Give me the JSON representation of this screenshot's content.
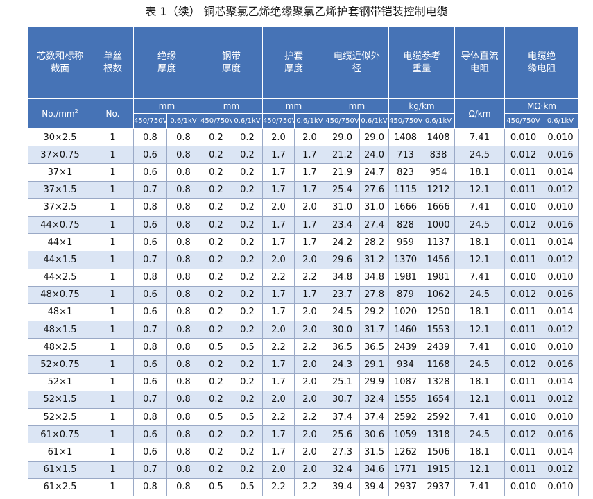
{
  "title": "表 1（续） 铜芯聚氯乙烯绝缘聚氯乙烯护套钢带铠装控制电缆",
  "header": {
    "core": "芯数和标称截面",
    "wires": "单丝根数",
    "insulation": "绝缘厚度",
    "steel_tape": "钢带厚度",
    "sheath": "护套厚度",
    "od": "电缆近似外径",
    "weight": "电缆参考重量",
    "dc_resistance": "导体直流电阻",
    "ins_resistance": "电缆绝缘电阻"
  },
  "units": {
    "core": "No./mm",
    "core_sup": "2",
    "wires": "No.",
    "mm1": "mm",
    "mm2": "mm",
    "mm3": "mm",
    "mm4": "mm",
    "kgkm": "kg/km",
    "ohmkm": "Ω/km",
    "mohmkm": "MΩ·km"
  },
  "voltage": {
    "low": "450/750V",
    "high": "0.6/1kV"
  },
  "rows": [
    [
      "30×2.5",
      "1",
      "0.8",
      "0.8",
      "0.2",
      "0.2",
      "2.0",
      "2.0",
      "29.0",
      "29.0",
      "1408",
      "1408",
      "7.41",
      "0.010",
      "0.010"
    ],
    [
      "37×0.75",
      "1",
      "0.6",
      "0.8",
      "0.2",
      "0.2",
      "1.7",
      "1.7",
      "21.2",
      "24.0",
      "713",
      "838",
      "24.5",
      "0.012",
      "0.016"
    ],
    [
      "37×1",
      "1",
      "0.6",
      "0.8",
      "0.2",
      "0.2",
      "1.7",
      "1.7",
      "21.9",
      "24.7",
      "823",
      "954",
      "18.1",
      "0.011",
      "0.014"
    ],
    [
      "37×1.5",
      "1",
      "0.7",
      "0.8",
      "0.2",
      "0.2",
      "1.7",
      "1.7",
      "25.4",
      "27.6",
      "1115",
      "1212",
      "12.1",
      "0.011",
      "0.012"
    ],
    [
      "37×2.5",
      "1",
      "0.8",
      "0.8",
      "0.2",
      "0.2",
      "2.0",
      "2.0",
      "31.0",
      "31.0",
      "1666",
      "1666",
      "7.41",
      "0.010",
      "0.010"
    ],
    [
      "44×0.75",
      "1",
      "0.6",
      "0.8",
      "0.2",
      "0.2",
      "1.7",
      "1.7",
      "23.4",
      "27.4",
      "828",
      "1000",
      "24.5",
      "0.012",
      "0.016"
    ],
    [
      "44×1",
      "1",
      "0.6",
      "0.8",
      "0.2",
      "0.2",
      "1.7",
      "1.7",
      "24.2",
      "28.2",
      "959",
      "1137",
      "18.1",
      "0.011",
      "0.014"
    ],
    [
      "44×1.5",
      "1",
      "0.7",
      "0.8",
      "0.2",
      "0.2",
      "2.0",
      "2.0",
      "29.6",
      "31.2",
      "1370",
      "1456",
      "12.1",
      "0.011",
      "0.012"
    ],
    [
      "44×2.5",
      "1",
      "0.8",
      "0.8",
      "0.2",
      "0.2",
      "2.2",
      "2.2",
      "34.8",
      "34.8",
      "1981",
      "1981",
      "7.41",
      "0.010",
      "0.010"
    ],
    [
      "48×0.75",
      "1",
      "0.6",
      "0.8",
      "0.2",
      "0.2",
      "1.7",
      "1.7",
      "23.7",
      "27.8",
      "879",
      "1062",
      "24.5",
      "0.012",
      "0.016"
    ],
    [
      "48×1",
      "1",
      "0.6",
      "0.8",
      "0.2",
      "0.2",
      "1.7",
      "2.0",
      "24.5",
      "29.2",
      "1020",
      "1250",
      "18.1",
      "0.011",
      "0.014"
    ],
    [
      "48×1.5",
      "1",
      "0.7",
      "0.8",
      "0.2",
      "0.2",
      "2.0",
      "2.0",
      "30.0",
      "31.7",
      "1460",
      "1553",
      "12.1",
      "0.011",
      "0.012"
    ],
    [
      "48×2.5",
      "1",
      "0.8",
      "0.8",
      "0.5",
      "0.5",
      "2.2",
      "2.2",
      "36.5",
      "36.5",
      "2439",
      "2439",
      "7.41",
      "0.010",
      "0.010"
    ],
    [
      "52×0.75",
      "1",
      "0.6",
      "0.8",
      "0.2",
      "0.2",
      "1.7",
      "2.0",
      "24.3",
      "29.1",
      "934",
      "1168",
      "24.5",
      "0.012",
      "0.016"
    ],
    [
      "52×1",
      "1",
      "0.6",
      "0.8",
      "0.2",
      "0.2",
      "1.7",
      "2.0",
      "25.1",
      "29.9",
      "1087",
      "1328",
      "18.1",
      "0.011",
      "0.014"
    ],
    [
      "52×1.5",
      "1",
      "0.7",
      "0.8",
      "0.2",
      "0.2",
      "2.0",
      "2.0",
      "30.7",
      "32.4",
      "1555",
      "1654",
      "12.1",
      "0.011",
      "0.012"
    ],
    [
      "52×2.5",
      "1",
      "0.8",
      "0.8",
      "0.5",
      "0.5",
      "2.2",
      "2.2",
      "37.4",
      "37.4",
      "2592",
      "2592",
      "7.41",
      "0.010",
      "0.010"
    ],
    [
      "61×0.75",
      "1",
      "0.6",
      "0.8",
      "0.2",
      "0.2",
      "1.7",
      "2.0",
      "25.6",
      "30.6",
      "1059",
      "1318",
      "24.5",
      "0.012",
      "0.016"
    ],
    [
      "61×1",
      "1",
      "0.6",
      "0.8",
      "0.2",
      "0.2",
      "1.7",
      "2.0",
      "27.3",
      "31.5",
      "1262",
      "1506",
      "18.1",
      "0.011",
      "0.014"
    ],
    [
      "61×1.5",
      "1",
      "0.7",
      "0.8",
      "0.2",
      "0.2",
      "2.0",
      "2.0",
      "32.4",
      "34.6",
      "1771",
      "1915",
      "12.1",
      "0.011",
      "0.012"
    ],
    [
      "61×2.5",
      "1",
      "0.8",
      "0.8",
      "0.5",
      "0.5",
      "2.2",
      "2.2",
      "39.4",
      "39.4",
      "2937",
      "2937",
      "7.41",
      "0.010",
      "0.010"
    ]
  ]
}
